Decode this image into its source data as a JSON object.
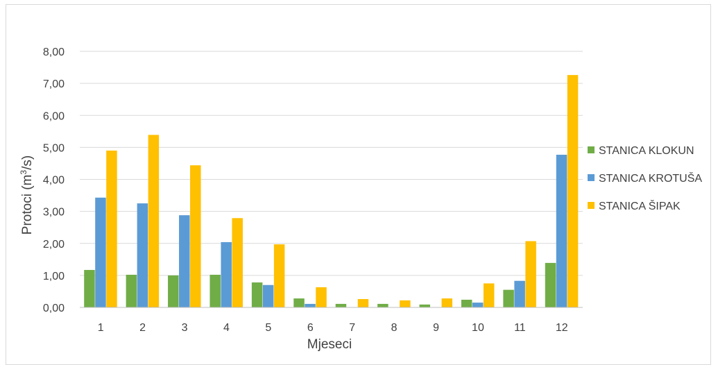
{
  "chart_data": {
    "type": "bar",
    "title": "",
    "xlabel": "Mjeseci",
    "ylabel": "Protoci (m",
    "ylabel_sup": "3",
    "ylabel_tail": "/s)",
    "ylim": [
      0,
      8
    ],
    "y_ticks": [
      "0,00",
      "1,00",
      "2,00",
      "3,00",
      "4,00",
      "5,00",
      "6,00",
      "7,00",
      "8,00"
    ],
    "categories": [
      "1",
      "2",
      "3",
      "4",
      "5",
      "6",
      "7",
      "8",
      "9",
      "10",
      "11",
      "12"
    ],
    "grid": true,
    "legend_position": "right",
    "series": [
      {
        "name": "STANICA KLOKUN",
        "color": "#70ad47",
        "values": [
          1.17,
          1.02,
          1.0,
          1.02,
          0.78,
          0.28,
          0.11,
          0.11,
          0.09,
          0.24,
          0.55,
          1.39
        ]
      },
      {
        "name": "STANICA KROTUŠA",
        "color": "#5b9bd5",
        "values": [
          3.43,
          3.25,
          2.88,
          2.04,
          0.7,
          0.11,
          0.0,
          0.0,
          0.0,
          0.15,
          0.83,
          4.77
        ]
      },
      {
        "name": "STANICA ŠIPAK",
        "color": "#ffc000",
        "values": [
          4.9,
          5.39,
          4.44,
          2.79,
          1.97,
          0.63,
          0.26,
          0.22,
          0.28,
          0.75,
          2.07,
          7.26
        ]
      }
    ]
  }
}
